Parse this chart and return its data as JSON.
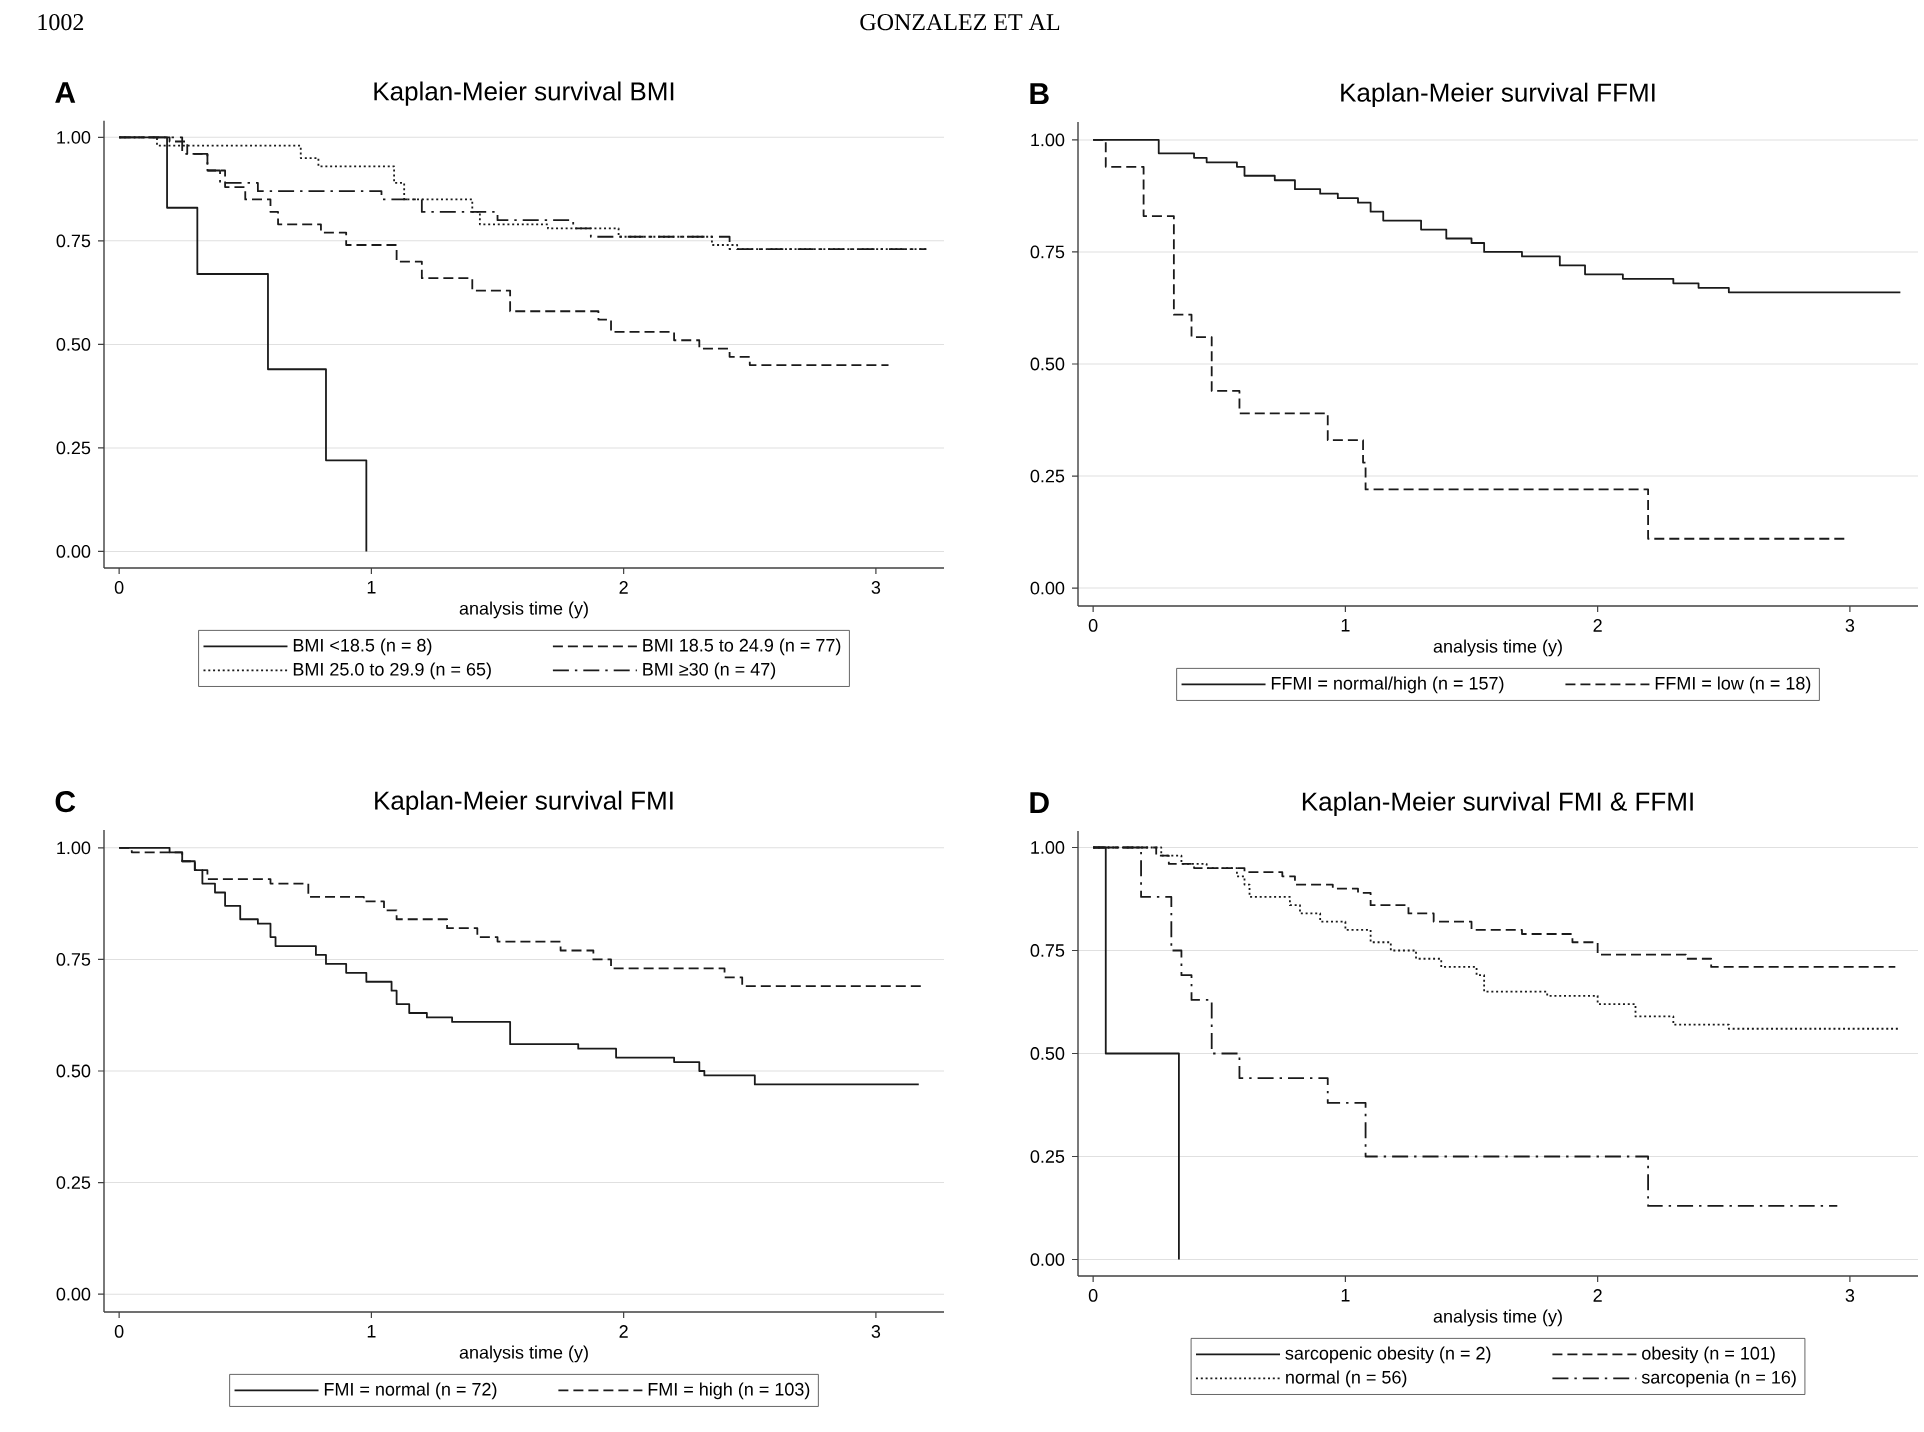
{
  "chart_data": [
    {
      "type": "step",
      "title": "Kaplan-Meier survival BMI",
      "xlabel": "analysis time (y)",
      "annotations": [
        "A",
        "1002",
        "GONZALEZ ET AL"
      ],
      "xlim": [
        -0.06,
        3.27
      ],
      "ylim": [
        -0.04,
        1.04
      ],
      "xticks": [
        0,
        1,
        2,
        3
      ],
      "yticks": [
        {
          "value": 0,
          "label": "0.00"
        },
        {
          "value": 0.25,
          "label": "0.25"
        },
        {
          "value": 0.5,
          "label": "0.50"
        },
        {
          "value": 0.75,
          "label": "0.75"
        },
        {
          "value": 1,
          "label": "1.00"
        }
      ],
      "grid": "y",
      "legend": "bottom",
      "series": [
        {
          "name": "BMI <18.5 (n = 8)",
          "color": "#1a1a1a",
          "line_style": "solid",
          "x": [
            0,
            0.19,
            0.31,
            0.59,
            0.82,
            0.98
          ],
          "values": [
            1,
            0.83,
            0.67,
            0.44,
            0.22,
            0
          ]
        },
        {
          "name": "BMI 18.5 to 24.9 (n = 77)",
          "color": "#1a1a1a",
          "line_style": "dashed",
          "x": [
            0,
            0.2,
            0.27,
            0.35,
            0.42,
            0.5,
            0.6,
            0.63,
            0.8,
            0.9,
            1.1,
            1.2,
            1.4,
            1.55,
            1.9,
            1.95,
            2.2,
            2.3,
            2.42,
            2.5,
            3.05
          ],
          "values": [
            1,
            0.99,
            0.96,
            0.92,
            0.88,
            0.85,
            0.82,
            0.79,
            0.77,
            0.74,
            0.7,
            0.66,
            0.63,
            0.58,
            0.56,
            0.53,
            0.51,
            0.49,
            0.47,
            0.45,
            0.45
          ]
        },
        {
          "name": "BMI 25.0 to 29.9 (n = 65)",
          "color": "#1a1a1a",
          "line_style": "dotted",
          "x": [
            0,
            0.15,
            0.72,
            0.79,
            1.09,
            1.13,
            1.4,
            1.43,
            1.7,
            1.98,
            2.35,
            2.45,
            3.2
          ],
          "values": [
            1,
            0.98,
            0.95,
            0.93,
            0.89,
            0.85,
            0.82,
            0.79,
            0.78,
            0.76,
            0.74,
            0.73,
            0.73
          ]
        },
        {
          "name": "BMI ≥30 (n = 47)",
          "color": "#1a1a1a",
          "line_style": "dashdot",
          "x": [
            0,
            0.25,
            0.35,
            0.4,
            0.55,
            1.04,
            1.2,
            1.5,
            1.8,
            1.87,
            2.42,
            3.2
          ],
          "values": [
            1,
            0.96,
            0.92,
            0.89,
            0.87,
            0.85,
            0.82,
            0.8,
            0.78,
            0.76,
            0.73,
            0.73
          ]
        }
      ]
    },
    {
      "type": "step",
      "title": "Kaplan-Meier survival FFMI",
      "xlabel": "analysis time (y)",
      "annotations": [
        "B"
      ],
      "xlim": [
        -0.06,
        3.27
      ],
      "ylim": [
        -0.04,
        1.04
      ],
      "xticks": [
        0,
        1,
        2,
        3
      ],
      "yticks": [
        {
          "value": 0,
          "label": "0.00"
        },
        {
          "value": 0.25,
          "label": "0.25"
        },
        {
          "value": 0.5,
          "label": "0.50"
        },
        {
          "value": 0.75,
          "label": "0.75"
        },
        {
          "value": 1,
          "label": "1.00"
        }
      ],
      "grid": "y",
      "legend": "bottom",
      "series": [
        {
          "name": "FFMI = normal/high (n = 157)",
          "color": "#1a1a1a",
          "line_style": "solid",
          "x": [
            0,
            0.26,
            0.4,
            0.45,
            0.57,
            0.6,
            0.72,
            0.8,
            0.9,
            0.97,
            1.05,
            1.1,
            1.15,
            1.3,
            1.4,
            1.5,
            1.55,
            1.7,
            1.85,
            1.95,
            2.1,
            2.3,
            2.4,
            2.52,
            3.2
          ],
          "values": [
            1,
            0.97,
            0.96,
            0.95,
            0.94,
            0.92,
            0.91,
            0.89,
            0.88,
            0.87,
            0.86,
            0.84,
            0.82,
            0.8,
            0.78,
            0.77,
            0.75,
            0.74,
            0.72,
            0.7,
            0.69,
            0.68,
            0.67,
            0.66,
            0.66
          ]
        },
        {
          "name": "FFMI = low (n = 18)",
          "color": "#1a1a1a",
          "line_style": "dashed",
          "x": [
            0,
            0.05,
            0.2,
            0.32,
            0.39,
            0.47,
            0.58,
            0.93,
            1.07,
            1.08,
            2.2,
            2.98
          ],
          "values": [
            1,
            0.94,
            0.83,
            0.61,
            0.56,
            0.44,
            0.39,
            0.33,
            0.28,
            0.22,
            0.11,
            0.11
          ]
        }
      ]
    },
    {
      "type": "step",
      "title": "Kaplan-Meier survival FMI",
      "xlabel": "analysis time (y)",
      "annotations": [
        "C"
      ],
      "xlim": [
        -0.06,
        3.27
      ],
      "ylim": [
        -0.04,
        1.04
      ],
      "xticks": [
        0,
        1,
        2,
        3
      ],
      "yticks": [
        {
          "value": 0,
          "label": "0.00"
        },
        {
          "value": 0.25,
          "label": "0.25"
        },
        {
          "value": 0.5,
          "label": "0.50"
        },
        {
          "value": 0.75,
          "label": "0.75"
        },
        {
          "value": 1,
          "label": "1.00"
        }
      ],
      "grid": "y",
      "legend": "bottom",
      "series": [
        {
          "name": "FMI = normal (n = 72)",
          "color": "#1a1a1a",
          "line_style": "solid",
          "x": [
            0,
            0.2,
            0.25,
            0.3,
            0.33,
            0.38,
            0.42,
            0.48,
            0.55,
            0.6,
            0.62,
            0.78,
            0.82,
            0.9,
            0.98,
            1.08,
            1.1,
            1.15,
            1.22,
            1.32,
            1.55,
            1.82,
            1.97,
            2.2,
            2.3,
            2.32,
            2.52,
            3.17
          ],
          "values": [
            1,
            0.99,
            0.97,
            0.95,
            0.92,
            0.9,
            0.87,
            0.84,
            0.83,
            0.8,
            0.78,
            0.76,
            0.74,
            0.72,
            0.7,
            0.68,
            0.65,
            0.63,
            0.62,
            0.61,
            0.56,
            0.55,
            0.53,
            0.52,
            0.5,
            0.49,
            0.47,
            0.47
          ]
        },
        {
          "name": "FMI = high (n = 103)",
          "color": "#1a1a1a",
          "line_style": "dashed",
          "x": [
            0,
            0.05,
            0.25,
            0.3,
            0.35,
            0.6,
            0.75,
            0.97,
            1.05,
            1.1,
            1.3,
            1.42,
            1.5,
            1.75,
            1.88,
            1.95,
            2.4,
            2.47,
            3.18
          ],
          "values": [
            1,
            0.99,
            0.97,
            0.95,
            0.93,
            0.92,
            0.89,
            0.88,
            0.86,
            0.84,
            0.82,
            0.8,
            0.79,
            0.77,
            0.75,
            0.73,
            0.71,
            0.69,
            0.69
          ]
        }
      ]
    },
    {
      "type": "step",
      "title": "Kaplan-Meier survival FMI & FFMI",
      "xlabel": "analysis time (y)",
      "annotations": [
        "D"
      ],
      "xlim": [
        -0.06,
        3.27
      ],
      "ylim": [
        -0.04,
        1.04
      ],
      "xticks": [
        0,
        1,
        2,
        3
      ],
      "yticks": [
        {
          "value": 0,
          "label": "0.00"
        },
        {
          "value": 0.25,
          "label": "0.25"
        },
        {
          "value": 0.5,
          "label": "0.50"
        },
        {
          "value": 0.75,
          "label": "0.75"
        },
        {
          "value": 1,
          "label": "1.00"
        }
      ],
      "grid": "y",
      "legend": "bottom",
      "series": [
        {
          "name": "sarcopenic obesity (n = 2)",
          "color": "#1a1a1a",
          "line_style": "solid",
          "x": [
            0,
            0.05,
            0.34
          ],
          "values": [
            1,
            0.5,
            0
          ]
        },
        {
          "name": "obesity (n = 101)",
          "color": "#1a1a1a",
          "line_style": "dashed",
          "x": [
            0,
            0.25,
            0.3,
            0.4,
            0.6,
            0.75,
            0.8,
            0.95,
            1.05,
            1.1,
            1.25,
            1.35,
            1.5,
            1.7,
            1.9,
            2.0,
            2.35,
            2.45,
            3.18
          ],
          "values": [
            1,
            0.98,
            0.96,
            0.95,
            0.94,
            0.93,
            0.91,
            0.9,
            0.89,
            0.86,
            0.84,
            0.82,
            0.8,
            0.79,
            0.77,
            0.74,
            0.73,
            0.71,
            0.71
          ]
        },
        {
          "name": "normal (n = 56)",
          "color": "#1a1a1a",
          "line_style": "dotted",
          "x": [
            0,
            0.27,
            0.35,
            0.45,
            0.57,
            0.6,
            0.62,
            0.78,
            0.82,
            0.9,
            1.0,
            1.1,
            1.18,
            1.28,
            1.38,
            1.52,
            1.55,
            1.8,
            2.0,
            2.15,
            2.3,
            2.52,
            3.2
          ],
          "values": [
            1,
            0.98,
            0.96,
            0.95,
            0.93,
            0.91,
            0.88,
            0.86,
            0.84,
            0.82,
            0.8,
            0.77,
            0.75,
            0.73,
            0.71,
            0.69,
            0.65,
            0.64,
            0.62,
            0.59,
            0.57,
            0.56,
            0.56
          ]
        },
        {
          "name": "sarcopenia (n = 16)",
          "color": "#1a1a1a",
          "line_style": "dashdot",
          "x": [
            0,
            0.19,
            0.31,
            0.35,
            0.39,
            0.47,
            0.58,
            0.93,
            1.08,
            2.2,
            2.95
          ],
          "values": [
            1,
            0.88,
            0.75,
            0.69,
            0.63,
            0.5,
            0.44,
            0.38,
            0.25,
            0.13,
            0.13
          ]
        }
      ]
    }
  ]
}
